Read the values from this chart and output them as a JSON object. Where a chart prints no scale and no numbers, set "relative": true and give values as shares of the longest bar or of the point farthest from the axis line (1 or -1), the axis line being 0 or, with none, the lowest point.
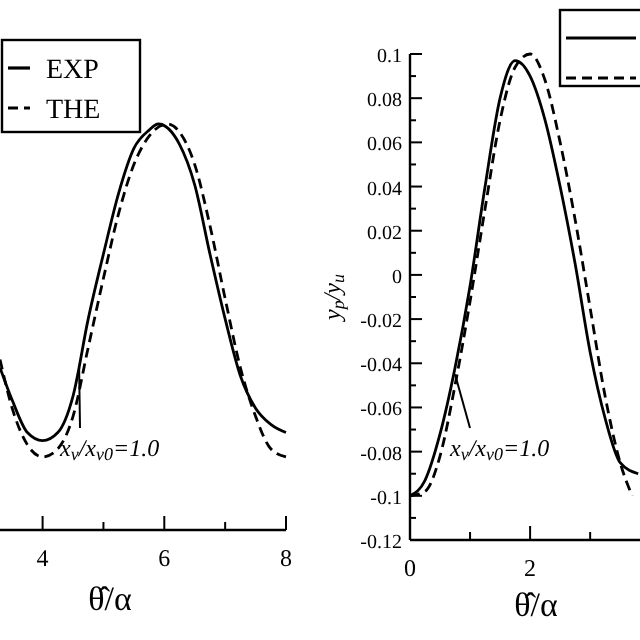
{
  "chart_data": [
    {
      "type": "line",
      "relative": true,
      "xlabel": "θ̂/α",
      "xlim": [
        3.3,
        8
      ],
      "xticks": [
        4,
        {
          "value": 5,
          "label": null
        },
        6,
        {
          "value": 7,
          "label": null
        },
        8
      ],
      "tick_labels": "x",
      "legend": "top left",
      "annotations": [
        {
          "text": "x$_{v}$/x$_{v0}$=1.0",
          "x": 4.6,
          "y": 0.4
        }
      ],
      "x": [
        3.3,
        3.5,
        3.75,
        4,
        4.25,
        4.5,
        4.75,
        5,
        5.25,
        5.5,
        5.75,
        5.9,
        6.25,
        6.5,
        6.75,
        7,
        7.25,
        7.5,
        7.75,
        8
      ],
      "series": [
        {
          "name": "EXP",
          "color": "#000000",
          "line_style": "solid",
          "values": [
            0.4,
            0.32,
            0.24,
            0.22,
            0.24,
            0.33,
            0.52,
            0.68,
            0.83,
            0.94,
            0.985,
            1,
            0.95,
            0.85,
            0.68,
            0.52,
            0.38,
            0.3,
            0.26,
            0.24
          ]
        },
        {
          "name": "THE",
          "color": "#000000",
          "line_style": "dashed",
          "x": [
            3.3,
            3.5,
            3.75,
            4,
            4.25,
            4.5,
            4.75,
            5,
            5.25,
            5.5,
            5.75,
            6.05,
            6.25,
            6.5,
            6.75,
            7,
            7.25,
            7.5,
            7.75,
            8
          ],
          "values": [
            0.42,
            0.3,
            0.21,
            0.18,
            0.2,
            0.28,
            0.45,
            0.62,
            0.78,
            0.9,
            0.97,
            1,
            0.98,
            0.9,
            0.75,
            0.57,
            0.4,
            0.28,
            0.2,
            0.18
          ]
        }
      ]
    },
    {
      "type": "line",
      "xlabel": "θ̂/α",
      "ylabel": "y$_{p}$/y$_{u}$",
      "xlim": [
        0,
        3.83
      ],
      "xticks": [
        0,
        {
          "value": 1,
          "label": null
        },
        2,
        {
          "value": 3,
          "label": null
        }
      ],
      "ylim": [
        -0.12,
        0.1
      ],
      "yticks": [
        -0.12,
        {
          "value": -0.11,
          "label": null
        },
        -0.1,
        {
          "value": -0.09,
          "label": null
        },
        -0.08,
        {
          "value": -0.07,
          "label": null
        },
        -0.06,
        {
          "value": -0.05,
          "label": null
        },
        -0.04,
        {
          "value": -0.03,
          "label": null
        },
        -0.02,
        {
          "value": -0.01,
          "label": null
        },
        0,
        {
          "value": 0.01,
          "label": null
        },
        0.02,
        {
          "value": 0.03,
          "label": null
        },
        0.04,
        {
          "value": 0.05,
          "label": null
        },
        0.06,
        {
          "value": 0.07,
          "label": null
        },
        0.08,
        {
          "value": 0.09,
          "label": null
        },
        0.1
      ],
      "legend": "top right",
      "annotations": [
        {
          "text": "x$_{v}$/x$_{v0}$=1.0",
          "x": 0.75,
          "y": -0.045
        }
      ],
      "x": [
        0,
        0.25,
        0.5,
        0.75,
        1,
        1.25,
        1.5,
        1.75,
        2,
        2.25,
        2.5,
        2.75,
        3,
        3.25,
        3.5,
        3.8
      ],
      "series": [
        {
          "color": "#000000",
          "line_style": "solid",
          "values": [
            -0.1,
            -0.093,
            -0.072,
            -0.042,
            -0.005,
            0.04,
            0.08,
            0.097,
            0.09,
            0.07,
            0.04,
            0.005,
            -0.035,
            -0.065,
            -0.085,
            -0.09
          ]
        },
        {
          "color": "#000000",
          "line_style": "dashed",
          "x": [
            0,
            0.25,
            0.5,
            0.75,
            1,
            1.25,
            1.5,
            1.75,
            2,
            2.25,
            2.5,
            2.75,
            3,
            3.25,
            3.5,
            3.7
          ],
          "values": [
            -0.1,
            -0.098,
            -0.082,
            -0.05,
            -0.012,
            0.03,
            0.07,
            0.094,
            0.1,
            0.088,
            0.06,
            0.025,
            -0.015,
            -0.055,
            -0.085,
            -0.1
          ]
        }
      ]
    }
  ]
}
